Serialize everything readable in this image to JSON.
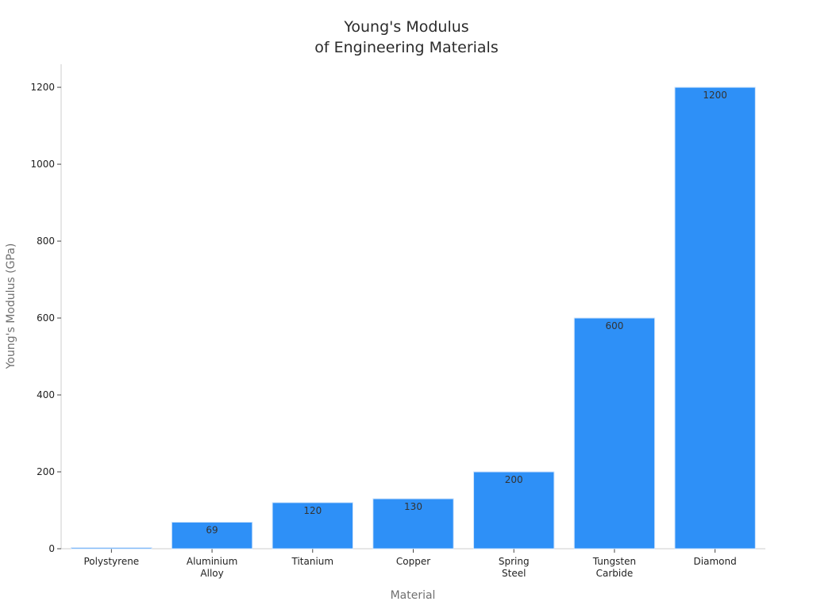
{
  "chart_data": {
    "type": "bar",
    "title_lines": [
      "Young's Modulus",
      "of Engineering Materials"
    ],
    "xlabel": "Material",
    "ylabel": "Young's Modulus (GPa)",
    "categories": [
      [
        "Polystyrene"
      ],
      [
        "Aluminium",
        "Alloy"
      ],
      [
        "Titanium"
      ],
      [
        "Copper"
      ],
      [
        "Spring",
        "Steel"
      ],
      [
        "Tungsten",
        "Carbide"
      ],
      [
        "Diamond"
      ]
    ],
    "values": [
      3,
      69,
      120,
      130,
      200,
      600,
      1200
    ],
    "data_labels": [
      "",
      "69",
      "120",
      "130",
      "200",
      "600",
      "1200"
    ],
    "ylim": [
      0,
      1260
    ],
    "yticks": [
      0,
      200,
      400,
      600,
      800,
      1000,
      1200
    ],
    "grid": false,
    "legend": "none",
    "bar_color": "#2e90f7",
    "bar_edge_color": "#cfe3fb",
    "axis_color": "#cccccc"
  }
}
